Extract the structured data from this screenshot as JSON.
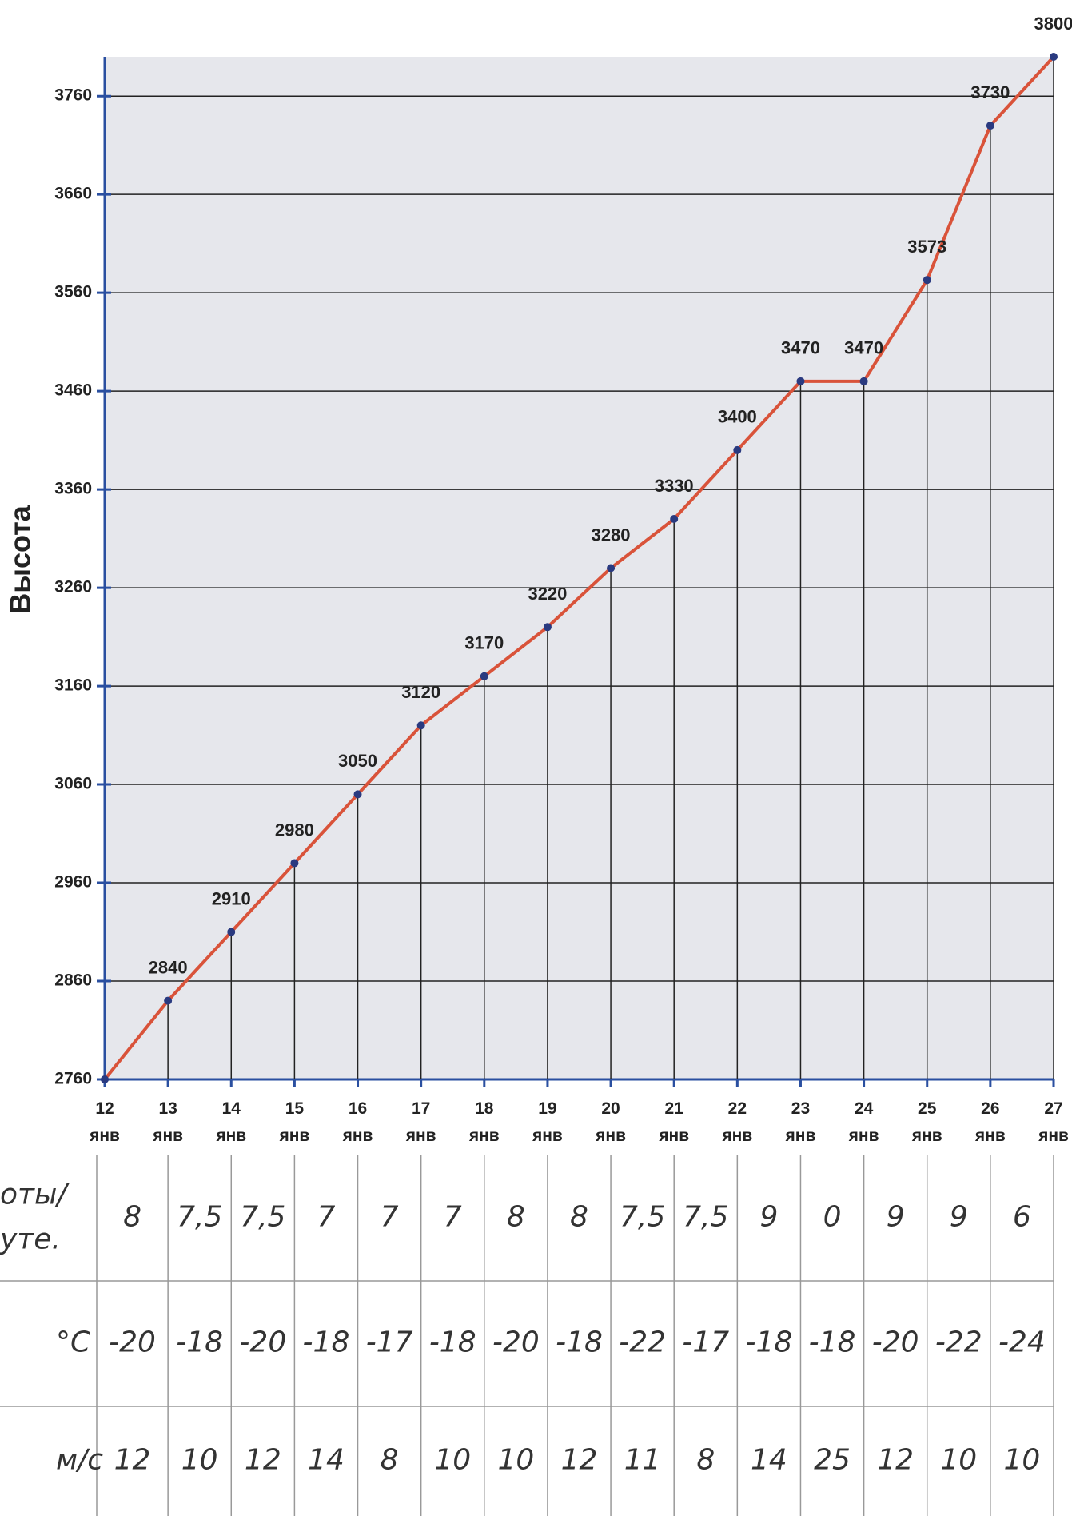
{
  "chart_data": {
    "type": "line",
    "y_label": "Высота",
    "categories": [
      "12 янв",
      "13 янв",
      "14 янв",
      "15 янв",
      "16 янв",
      "17 янв",
      "18 янв",
      "19 янв",
      "20 янв",
      "21 янв",
      "22 янв",
      "23 янв",
      "24 янв",
      "25 янв",
      "26 янв",
      "27 янв"
    ],
    "series": [
      {
        "color": "#d9533a",
        "values": [
          2760,
          2840,
          2910,
          2980,
          3050,
          3120,
          3170,
          3220,
          3280,
          3330,
          3400,
          3470,
          3470,
          3573,
          3730,
          3800
        ],
        "value_labels": [
          null,
          "2840",
          "2910",
          "2980",
          "3050",
          "3120",
          "3170",
          "3220",
          "3280",
          "3330",
          "3400",
          "3470",
          "3470",
          "3573",
          "3730",
          "3800"
        ]
      }
    ],
    "ylim": [
      2760,
      3800
    ],
    "yticks": [
      2760,
      2860,
      2960,
      3060,
      3160,
      3260,
      3360,
      3460,
      3560,
      3660,
      3760
    ],
    "grid": true
  },
  "table": {
    "rows": [
      {
        "label": [
          "оты/",
          "уте."
        ],
        "cells": [
          "8",
          "7,5",
          "7,5",
          "7",
          "7",
          "7",
          "8",
          "8",
          "7,5",
          "7,5",
          "9",
          "0",
          "9",
          "9",
          "6"
        ]
      },
      {
        "label": [
          "°C"
        ],
        "cells": [
          "-20",
          "-18",
          "-20",
          "-18",
          "-17",
          "-18",
          "-20",
          "-18",
          "-22",
          "-17",
          "-18",
          "-18",
          "-20",
          "-22",
          "-24"
        ]
      },
      {
        "label": [
          "м/с"
        ],
        "cells": [
          "12",
          "10",
          "12",
          "14",
          "8",
          "10",
          "10",
          "12",
          "11",
          "8",
          "14",
          "25",
          "12",
          "10",
          "10"
        ]
      }
    ]
  }
}
